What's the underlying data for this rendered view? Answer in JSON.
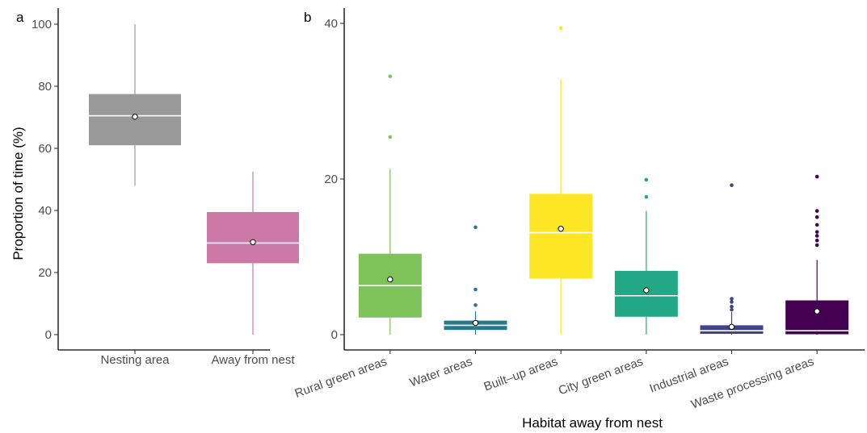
{
  "chart_data": [
    {
      "panel": "a",
      "type": "box",
      "ylabel": "Proportion of time (%)",
      "xlabel": "",
      "ylim": [
        0,
        100
      ],
      "yticks": [
        0,
        20,
        40,
        60,
        80,
        100
      ],
      "categories": [
        "Nesting area",
        "Away from nest"
      ],
      "colors": [
        "#999999",
        "#CC79A7"
      ],
      "boxes": [
        {
          "min": 48,
          "q1": 61,
          "median": 70.5,
          "q3": 77.5,
          "max": 100,
          "mean": 70.2,
          "outliers": []
        },
        {
          "min": 0,
          "q1": 23,
          "median": 29.5,
          "q3": 39.5,
          "max": 52.5,
          "mean": 29.8,
          "outliers": []
        }
      ]
    },
    {
      "panel": "b",
      "type": "box",
      "xlabel": "Habitat away from nest",
      "ylabel": "",
      "ylim": [
        0,
        40
      ],
      "yticks": [
        0,
        20,
        40
      ],
      "categories": [
        "Rural green areas",
        "Water areas",
        "Built–up areas",
        "City green areas",
        "Industrial areas",
        "Waste processing areas"
      ],
      "colors": [
        "#7DC35A",
        "#2A788E",
        "#FDE725",
        "#22A884",
        "#414487",
        "#440154"
      ],
      "boxes": [
        {
          "min": 0,
          "q1": 2.2,
          "median": 6.3,
          "q3": 10.4,
          "max": 21.3,
          "mean": 7.1,
          "outliers": [
            25.4,
            33.2
          ]
        },
        {
          "min": 0,
          "q1": 0.6,
          "median": 1.2,
          "q3": 1.8,
          "max": 3.0,
          "mean": 1.5,
          "outliers": [
            3.8,
            5.8,
            13.8
          ]
        },
        {
          "min": 0,
          "q1": 7.2,
          "median": 13.1,
          "q3": 18.1,
          "max": 32.8,
          "mean": 13.6,
          "outliers": [
            39.4
          ]
        },
        {
          "min": 0,
          "q1": 2.3,
          "median": 5.0,
          "q3": 8.2,
          "max": 15.9,
          "mean": 5.7,
          "outliers": [
            17.7,
            19.9
          ]
        },
        {
          "min": 0,
          "q1": 0.1,
          "median": 0.5,
          "q3": 1.2,
          "max": 2.9,
          "mean": 1.0,
          "outliers": [
            3.2,
            3.6,
            4.2,
            4.6,
            19.2
          ]
        },
        {
          "min": 0,
          "q1": 0.05,
          "median": 0.5,
          "q3": 4.4,
          "max": 9.6,
          "mean": 3.0,
          "outliers": [
            11.5,
            12.1,
            12.7,
            13.2,
            14.1,
            15.1,
            15.9,
            20.3
          ]
        }
      ]
    }
  ]
}
